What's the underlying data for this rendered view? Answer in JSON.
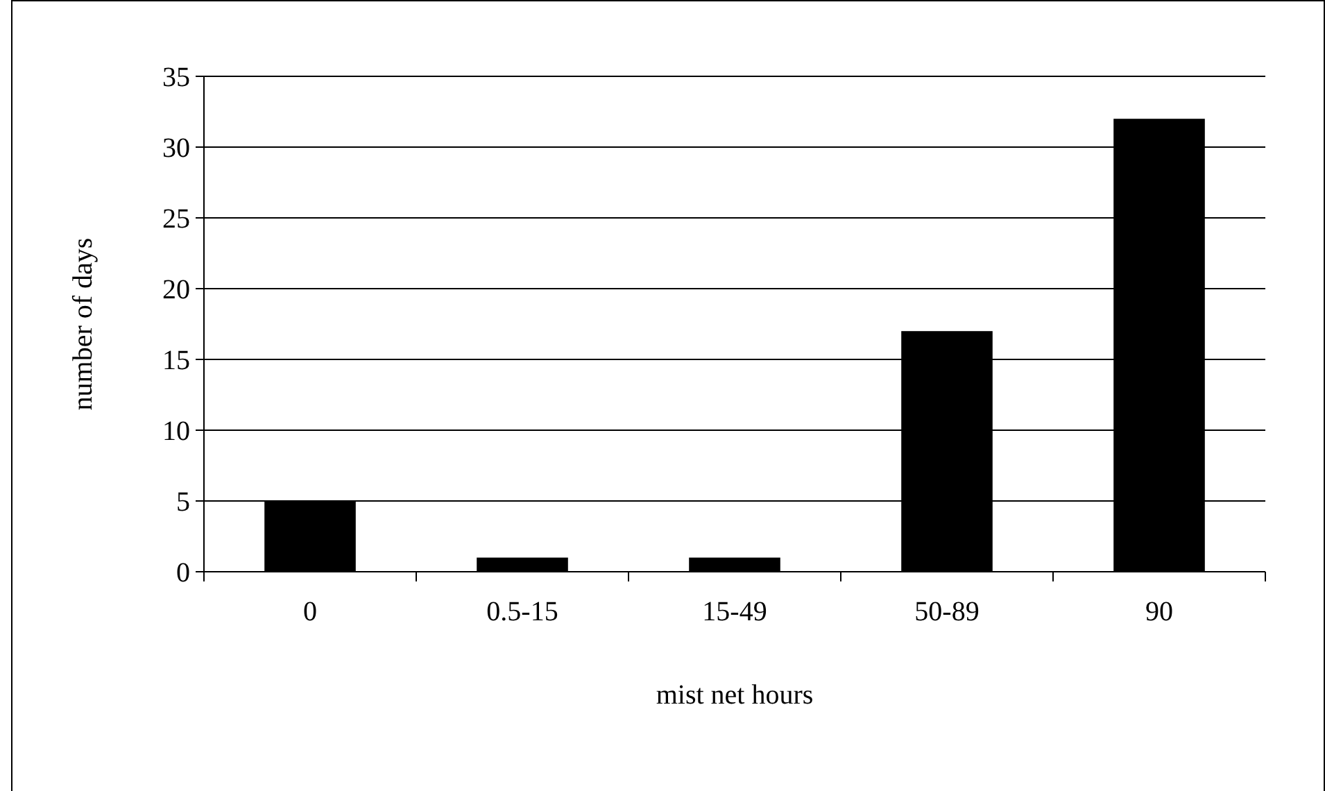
{
  "chart_data": {
    "type": "bar",
    "xlabel": "mist net hours",
    "ylabel": "number of days",
    "categories": [
      "0",
      "0.5-15",
      "15-49",
      "50-89",
      "90"
    ],
    "values": [
      5,
      1,
      1,
      17,
      32
    ],
    "color": "#000000",
    "ylim": [
      0,
      35
    ],
    "yticks": [
      0,
      5,
      10,
      15,
      20,
      25,
      30,
      35
    ],
    "grid": "y"
  }
}
